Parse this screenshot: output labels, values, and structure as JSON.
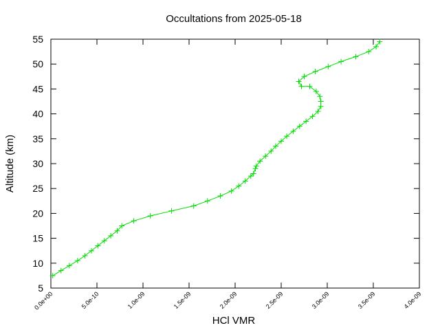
{
  "chart_data": {
    "type": "line",
    "title": "Occultations from 2025-05-18",
    "xlabel": "HCl VMR",
    "ylabel": "Altitude (km)",
    "xlim": [
      0,
      4e-09
    ],
    "ylim": [
      5,
      55
    ],
    "x_ticks": [
      0,
      5e-10,
      1e-09,
      1.5e-09,
      2e-09,
      2.5e-09,
      3e-09,
      3.5e-09,
      4e-09
    ],
    "x_tick_labels": [
      "0.0e+00",
      "5.0e-10",
      "1.0e-09",
      "1.5e-09",
      "2.0e-09",
      "2.5e-09",
      "3.0e-09",
      "3.5e-09",
      "4.0e-09"
    ],
    "y_ticks": [
      5,
      10,
      15,
      20,
      25,
      30,
      35,
      40,
      45,
      50,
      55
    ],
    "y_tick_labels": [
      "5",
      "10",
      "15",
      "20",
      "25",
      "30",
      "35",
      "40",
      "45",
      "50",
      "55"
    ],
    "grid": false,
    "marker": "plus",
    "series": [
      {
        "color": "#00dd00",
        "x": [
          2e-11,
          1.1e-10,
          2e-10,
          2.9e-10,
          3.7e-10,
          4.4e-10,
          5.1e-10,
          5.8e-10,
          6.5e-10,
          7.2e-10,
          7.7e-10,
          9e-10,
          1.08e-09,
          1.31e-09,
          1.55e-09,
          1.7e-09,
          1.84e-09,
          1.96e-09,
          2.04e-09,
          2.11e-09,
          2.17e-09,
          2.2e-09,
          2.22e-09,
          2.23e-09,
          2.27e-09,
          2.33e-09,
          2.39e-09,
          2.44e-09,
          2.5e-09,
          2.56e-09,
          2.63e-09,
          2.7e-09,
          2.77e-09,
          2.84e-09,
          2.9e-09,
          2.93e-09,
          2.93e-09,
          2.92e-09,
          2.88e-09,
          2.81e-09,
          2.72e-09,
          2.69e-09,
          2.75e-09,
          2.87e-09,
          3.01e-09,
          3.15e-09,
          3.31e-09,
          3.45e-09,
          3.53e-09,
          3.57e-09
        ],
        "y": [
          7.5,
          8.5,
          9.5,
          10.5,
          11.5,
          12.5,
          13.5,
          14.5,
          15.5,
          16.5,
          17.5,
          18.5,
          19.5,
          20.5,
          21.5,
          22.5,
          23.5,
          24.5,
          25.5,
          26.5,
          27.5,
          28.0,
          29.0,
          29.5,
          30.5,
          31.5,
          32.5,
          33.5,
          34.5,
          35.5,
          36.5,
          37.5,
          38.5,
          39.5,
          40.5,
          41.5,
          42.5,
          43.5,
          44.5,
          45.5,
          45.5,
          46.5,
          47.5,
          48.5,
          49.5,
          50.5,
          51.5,
          52.5,
          53.5,
          54.5
        ]
      }
    ]
  }
}
